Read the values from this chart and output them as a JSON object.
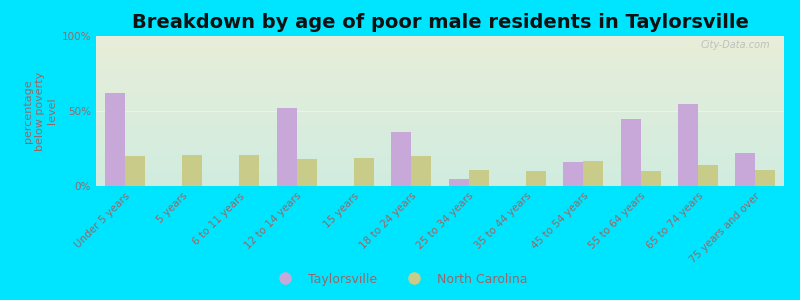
{
  "title": "Breakdown by age of poor male residents in Taylorsville",
  "ylabel": "percentage\nbelow poverty\nlevel",
  "categories": [
    "Under 5 years",
    "5 years",
    "6 to 11 years",
    "12 to 14 years",
    "15 years",
    "18 to 24 years",
    "25 to 34 years",
    "35 to 44 years",
    "45 to 54 years",
    "55 to 64 years",
    "65 to 74 years",
    "75 years and over"
  ],
  "taylorsville_values": [
    62,
    0,
    0,
    52,
    0,
    36,
    5,
    0,
    16,
    45,
    55,
    22
  ],
  "nc_values": [
    20,
    21,
    21,
    18,
    19,
    20,
    11,
    10,
    17,
    10,
    14,
    11
  ],
  "taylorsville_color": "#c8a8d8",
  "nc_color": "#c8cc88",
  "plot_bg_top": "#e8eed8",
  "plot_bg_bottom": "#d0ece0",
  "outer_bg": "#00e5ff",
  "ylim": [
    0,
    100
  ],
  "ytick_labels": [
    "0%",
    "50%",
    "100%"
  ],
  "title_fontsize": 14,
  "axis_label_fontsize": 8,
  "tick_fontsize": 7.5,
  "legend_fontsize": 9,
  "bar_width": 0.35,
  "watermark": "City-Data.com"
}
